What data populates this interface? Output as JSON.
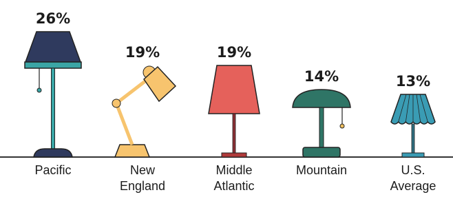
{
  "chart_data": {
    "type": "lamps",
    "categories": [
      "Pacific",
      "New England",
      "Middle Atlantic",
      "Mountain",
      "U.S. Average"
    ],
    "values": [
      26,
      19,
      19,
      14,
      13
    ],
    "value_labels": [
      "26%",
      "19%",
      "19%",
      "14%",
      "13%"
    ],
    "colors": [
      "#2f3a5e",
      "#f7c46e",
      "#e5615b",
      "#2f7566",
      "#3a9cb4"
    ]
  }
}
